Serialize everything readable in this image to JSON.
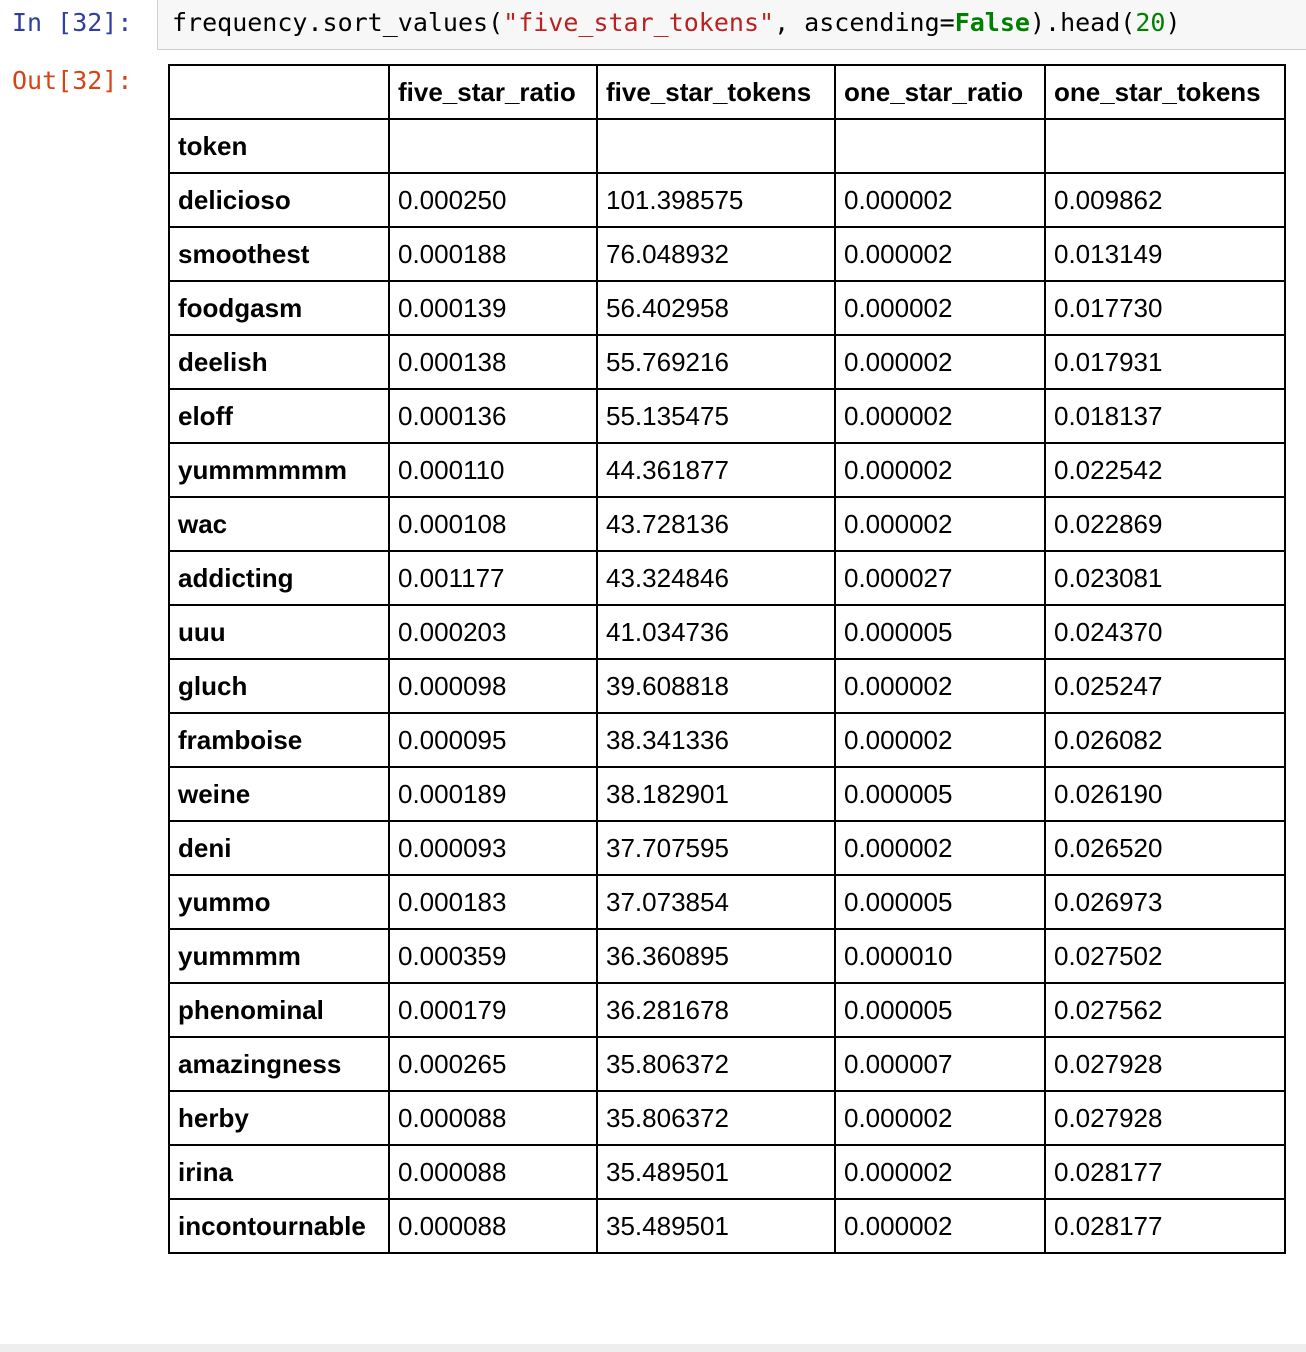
{
  "input_cell": {
    "prompt": "In [32]:",
    "code": {
      "prefix": "frequency.sort_values(",
      "string_arg": "\"five_star_tokens\"",
      "sep": ", ascending=",
      "bool_val": "False",
      "middle": ").head(",
      "num_arg": "20",
      "suffix": ")"
    }
  },
  "output_cell": {
    "prompt": "Out[32]:",
    "index_name": "token",
    "columns": [
      "five_star_ratio",
      "five_star_tokens",
      "one_star_ratio",
      "one_star_tokens"
    ],
    "rows": [
      {
        "token": "delicioso",
        "values": [
          "0.000250",
          "101.398575",
          "0.000002",
          "0.009862"
        ]
      },
      {
        "token": "smoothest",
        "values": [
          "0.000188",
          "76.048932",
          "0.000002",
          "0.013149"
        ]
      },
      {
        "token": "foodgasm",
        "values": [
          "0.000139",
          "56.402958",
          "0.000002",
          "0.017730"
        ]
      },
      {
        "token": "deelish",
        "values": [
          "0.000138",
          "55.769216",
          "0.000002",
          "0.017931"
        ]
      },
      {
        "token": "eloff",
        "values": [
          "0.000136",
          "55.135475",
          "0.000002",
          "0.018137"
        ]
      },
      {
        "token": "yummmmmm",
        "values": [
          "0.000110",
          "44.361877",
          "0.000002",
          "0.022542"
        ]
      },
      {
        "token": "wac",
        "values": [
          "0.000108",
          "43.728136",
          "0.000002",
          "0.022869"
        ]
      },
      {
        "token": "addicting",
        "values": [
          "0.001177",
          "43.324846",
          "0.000027",
          "0.023081"
        ]
      },
      {
        "token": "uuu",
        "values": [
          "0.000203",
          "41.034736",
          "0.000005",
          "0.024370"
        ]
      },
      {
        "token": "gluch",
        "values": [
          "0.000098",
          "39.608818",
          "0.000002",
          "0.025247"
        ]
      },
      {
        "token": "framboise",
        "values": [
          "0.000095",
          "38.341336",
          "0.000002",
          "0.026082"
        ]
      },
      {
        "token": "weine",
        "values": [
          "0.000189",
          "38.182901",
          "0.000005",
          "0.026190"
        ]
      },
      {
        "token": "deni",
        "values": [
          "0.000093",
          "37.707595",
          "0.000002",
          "0.026520"
        ]
      },
      {
        "token": "yummo",
        "values": [
          "0.000183",
          "37.073854",
          "0.000005",
          "0.026973"
        ]
      },
      {
        "token": "yummmm",
        "values": [
          "0.000359",
          "36.360895",
          "0.000010",
          "0.027502"
        ]
      },
      {
        "token": "phenominal",
        "values": [
          "0.000179",
          "36.281678",
          "0.000005",
          "0.027562"
        ]
      },
      {
        "token": "amazingness",
        "values": [
          "0.000265",
          "35.806372",
          "0.000007",
          "0.027928"
        ]
      },
      {
        "token": "herby",
        "values": [
          "0.000088",
          "35.806372",
          "0.000002",
          "0.027928"
        ]
      },
      {
        "token": "irina",
        "values": [
          "0.000088",
          "35.489501",
          "0.000002",
          "0.028177"
        ]
      },
      {
        "token": "incontournable",
        "values": [
          "0.000088",
          "35.489501",
          "0.000002",
          "0.028177"
        ]
      }
    ]
  }
}
